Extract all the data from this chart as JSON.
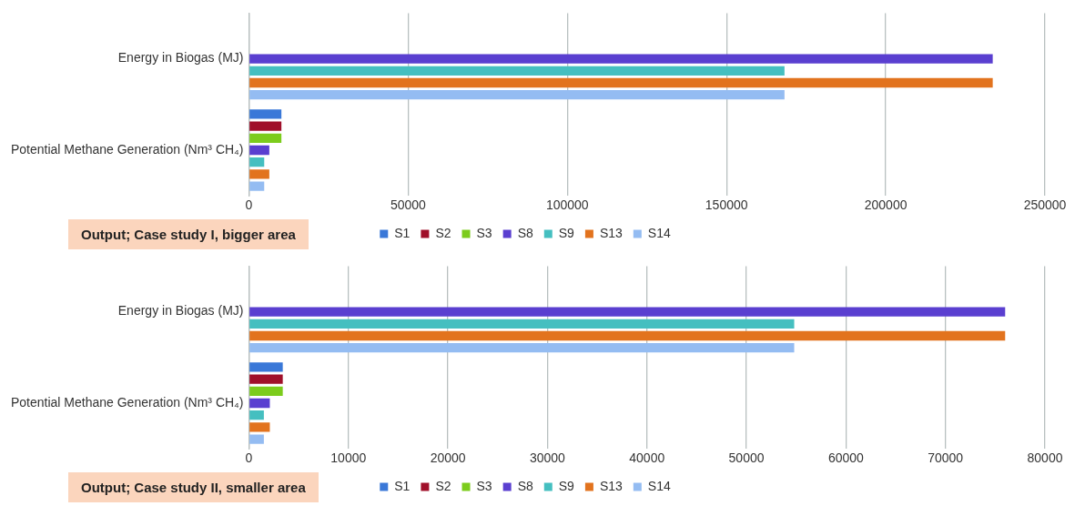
{
  "chart_data": [
    {
      "type": "bar",
      "orientation": "horizontal",
      "categories": [
        "Energy in Biogas (MJ)",
        "Potential Methane Generation (Nm³ CH₄)"
      ],
      "series": [
        {
          "name": "S1",
          "color": "#3a78d8",
          "values": [
            null,
            10200
          ]
        },
        {
          "name": "S2",
          "color": "#a0102a",
          "values": [
            null,
            10200
          ]
        },
        {
          "name": "S3",
          "color": "#7ccc1c",
          "values": [
            null,
            10200
          ]
        },
        {
          "name": "S8",
          "color": "#5a3fd0",
          "values": [
            233600,
            6400
          ]
        },
        {
          "name": "S9",
          "color": "#45bfc0",
          "values": [
            168200,
            4800
          ]
        },
        {
          "name": "S13",
          "color": "#e2731e",
          "values": [
            233600,
            6400
          ]
        },
        {
          "name": "S14",
          "color": "#94bcf2",
          "values": [
            168200,
            4800
          ]
        }
      ],
      "xlim": [
        0,
        250000
      ],
      "xticks": [
        0,
        50000,
        100000,
        150000,
        200000,
        250000
      ],
      "grid": "x",
      "legend": "bottom",
      "annotations": [
        "Output; Case study I, bigger area"
      ]
    },
    {
      "type": "bar",
      "orientation": "horizontal",
      "categories": [
        "Energy in Biogas (MJ)",
        "Potential Methane Generation (Nm³ CH₄)"
      ],
      "series": [
        {
          "name": "S1",
          "color": "#3a78d8",
          "values": [
            null,
            3400
          ]
        },
        {
          "name": "S2",
          "color": "#a0102a",
          "values": [
            null,
            3400
          ]
        },
        {
          "name": "S3",
          "color": "#7ccc1c",
          "values": [
            null,
            3400
          ]
        },
        {
          "name": "S8",
          "color": "#5a3fd0",
          "values": [
            76000,
            2100
          ]
        },
        {
          "name": "S9",
          "color": "#45bfc0",
          "values": [
            54800,
            1500
          ]
        },
        {
          "name": "S13",
          "color": "#e2731e",
          "values": [
            76000,
            2100
          ]
        },
        {
          "name": "S14",
          "color": "#94bcf2",
          "values": [
            54800,
            1500
          ]
        }
      ],
      "xlim": [
        0,
        80000
      ],
      "xticks": [
        0,
        10000,
        20000,
        30000,
        40000,
        50000,
        60000,
        70000,
        80000
      ],
      "grid": "x",
      "legend": "bottom",
      "annotations": [
        "Output; Case study II, smaller area"
      ]
    }
  ]
}
